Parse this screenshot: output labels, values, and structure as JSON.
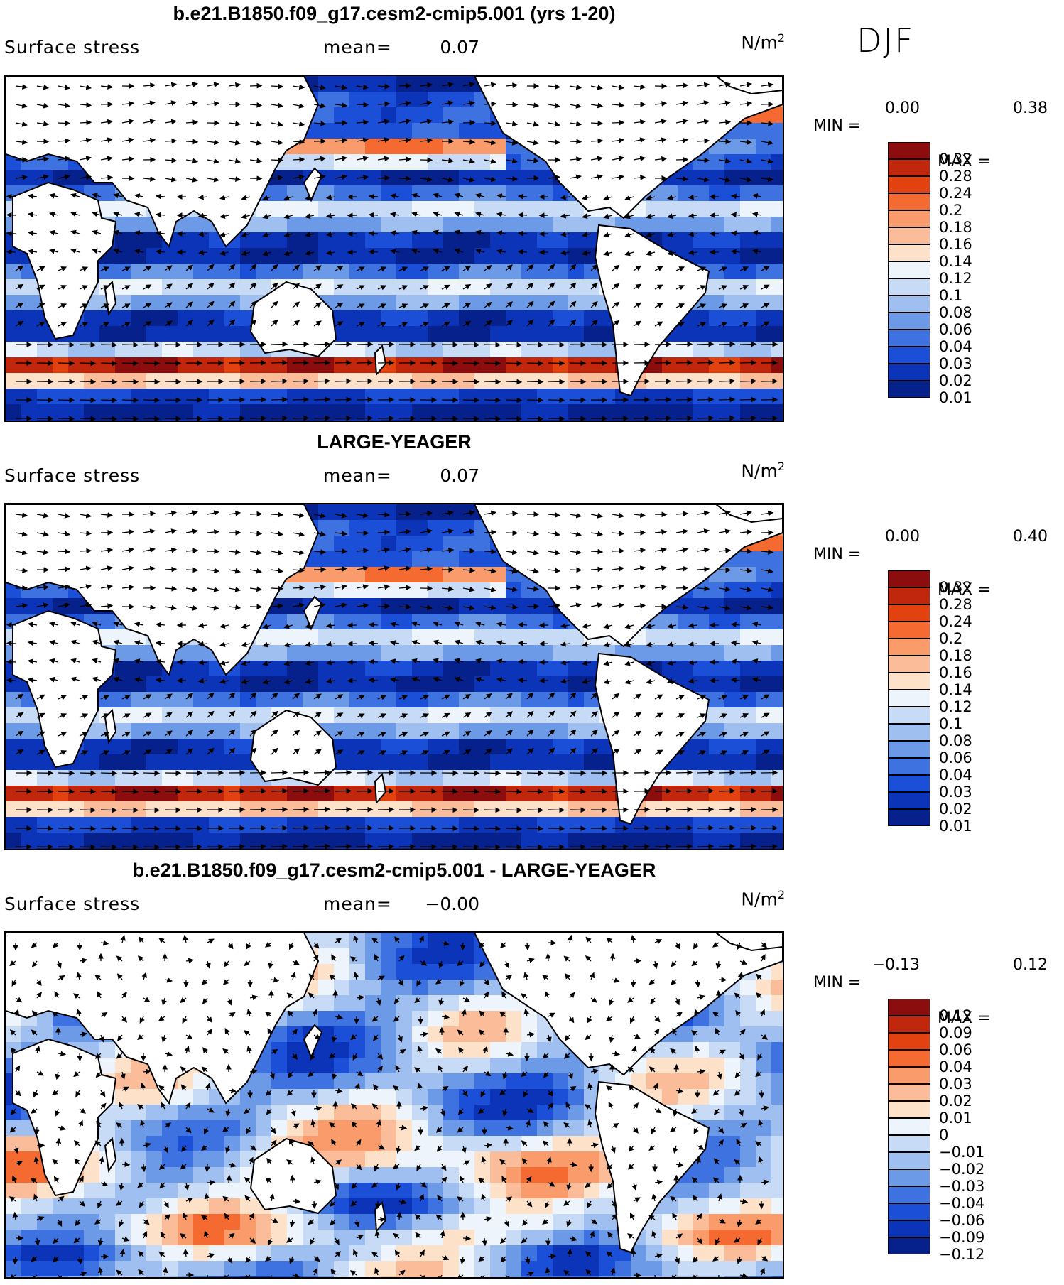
{
  "season": "DJF",
  "panels": [
    {
      "title": "b.e21.B1850.f09_g17.cesm2-cmip5.001 (yrs 1-20)",
      "variable": "Surface stress",
      "mean_label": "mean=",
      "mean_value": "0.07",
      "units": "N/m",
      "units_exp": "2",
      "min_label": "MIN =",
      "min_value": "0.00",
      "max_label": "MAX =",
      "max_value": "0.38",
      "colorbar_levels": [
        "0.32",
        "0.28",
        "0.24",
        "0.2",
        "0.18",
        "0.16",
        "0.14",
        "0.12",
        "0.1",
        "0.08",
        "0.06",
        "0.04",
        "0.03",
        "0.02",
        "0.01"
      ],
      "colorbar_colors": [
        "#8b0d0d",
        "#c1270d",
        "#e2420f",
        "#f56a30",
        "#f99b6b",
        "#fbbc9a",
        "#fde1c8",
        "#eef4fb",
        "#c7dbf6",
        "#9fbff0",
        "#6d9ae6",
        "#3d72e0",
        "#1b4fd8",
        "#0b34b8",
        "#06208c"
      ],
      "chart_data": {
        "type": "heatmap",
        "description_field": "Surface stress",
        "mean": 0.07,
        "min": 0.0,
        "max": 0.38,
        "units": "N/m2",
        "contour_levels": [
          0.01,
          0.02,
          0.03,
          0.04,
          0.06,
          0.08,
          0.1,
          0.12,
          0.14,
          0.16,
          0.18,
          0.2,
          0.24,
          0.28,
          0.32
        ]
      }
    },
    {
      "title": "LARGE-YEAGER",
      "variable": "Surface stress",
      "mean_label": "mean=",
      "mean_value": "0.07",
      "units": "N/m",
      "units_exp": "2",
      "min_label": "MIN =",
      "min_value": "0.00",
      "max_label": "MAX =",
      "max_value": "0.40",
      "colorbar_levels": [
        "0.32",
        "0.28",
        "0.24",
        "0.2",
        "0.18",
        "0.16",
        "0.14",
        "0.12",
        "0.1",
        "0.08",
        "0.06",
        "0.04",
        "0.03",
        "0.02",
        "0.01"
      ],
      "colorbar_colors": [
        "#8b0d0d",
        "#c1270d",
        "#e2420f",
        "#f56a30",
        "#f99b6b",
        "#fbbc9a",
        "#fde1c8",
        "#eef4fb",
        "#c7dbf6",
        "#9fbff0",
        "#6d9ae6",
        "#3d72e0",
        "#1b4fd8",
        "#0b34b8",
        "#06208c"
      ],
      "chart_data": {
        "type": "heatmap",
        "description_field": "Surface stress",
        "mean": 0.07,
        "min": 0.0,
        "max": 0.4,
        "units": "N/m2",
        "contour_levels": [
          0.01,
          0.02,
          0.03,
          0.04,
          0.06,
          0.08,
          0.1,
          0.12,
          0.14,
          0.16,
          0.18,
          0.2,
          0.24,
          0.28,
          0.32
        ]
      }
    },
    {
      "title": "b.e21.B1850.f09_g17.cesm2-cmip5.001 - LARGE-YEAGER",
      "variable": "Surface stress",
      "mean_label": "mean=",
      "mean_value": "−0.00",
      "units": "N/m",
      "units_exp": "2",
      "min_label": "MIN =",
      "min_value": "−0.13",
      "max_label": "MAX =",
      "max_value": "0.12",
      "colorbar_levels": [
        "0.12",
        "0.09",
        "0.06",
        "0.04",
        "0.03",
        "0.02",
        "0.01",
        "0",
        "−0.01",
        "−0.02",
        "−0.03",
        "−0.04",
        "−0.06",
        "−0.09",
        "−0.12"
      ],
      "colorbar_colors": [
        "#8b0d0d",
        "#c1270d",
        "#e2420f",
        "#f56a30",
        "#f99b6b",
        "#fbbc9a",
        "#fde1c8",
        "#eef4fb",
        "#c7dbf6",
        "#9fbff0",
        "#6d9ae6",
        "#3d72e0",
        "#1b4fd8",
        "#0b34b8",
        "#06208c"
      ],
      "chart_data": {
        "type": "heatmap",
        "description_field": "Surface stress",
        "mean": -0.0,
        "min": -0.13,
        "max": 0.12,
        "units": "N/m2",
        "contour_levels": [
          -0.12,
          -0.09,
          -0.06,
          -0.04,
          -0.03,
          -0.02,
          -0.01,
          0,
          0.01,
          0.02,
          0.03,
          0.04,
          0.06,
          0.09,
          0.12
        ]
      }
    }
  ]
}
